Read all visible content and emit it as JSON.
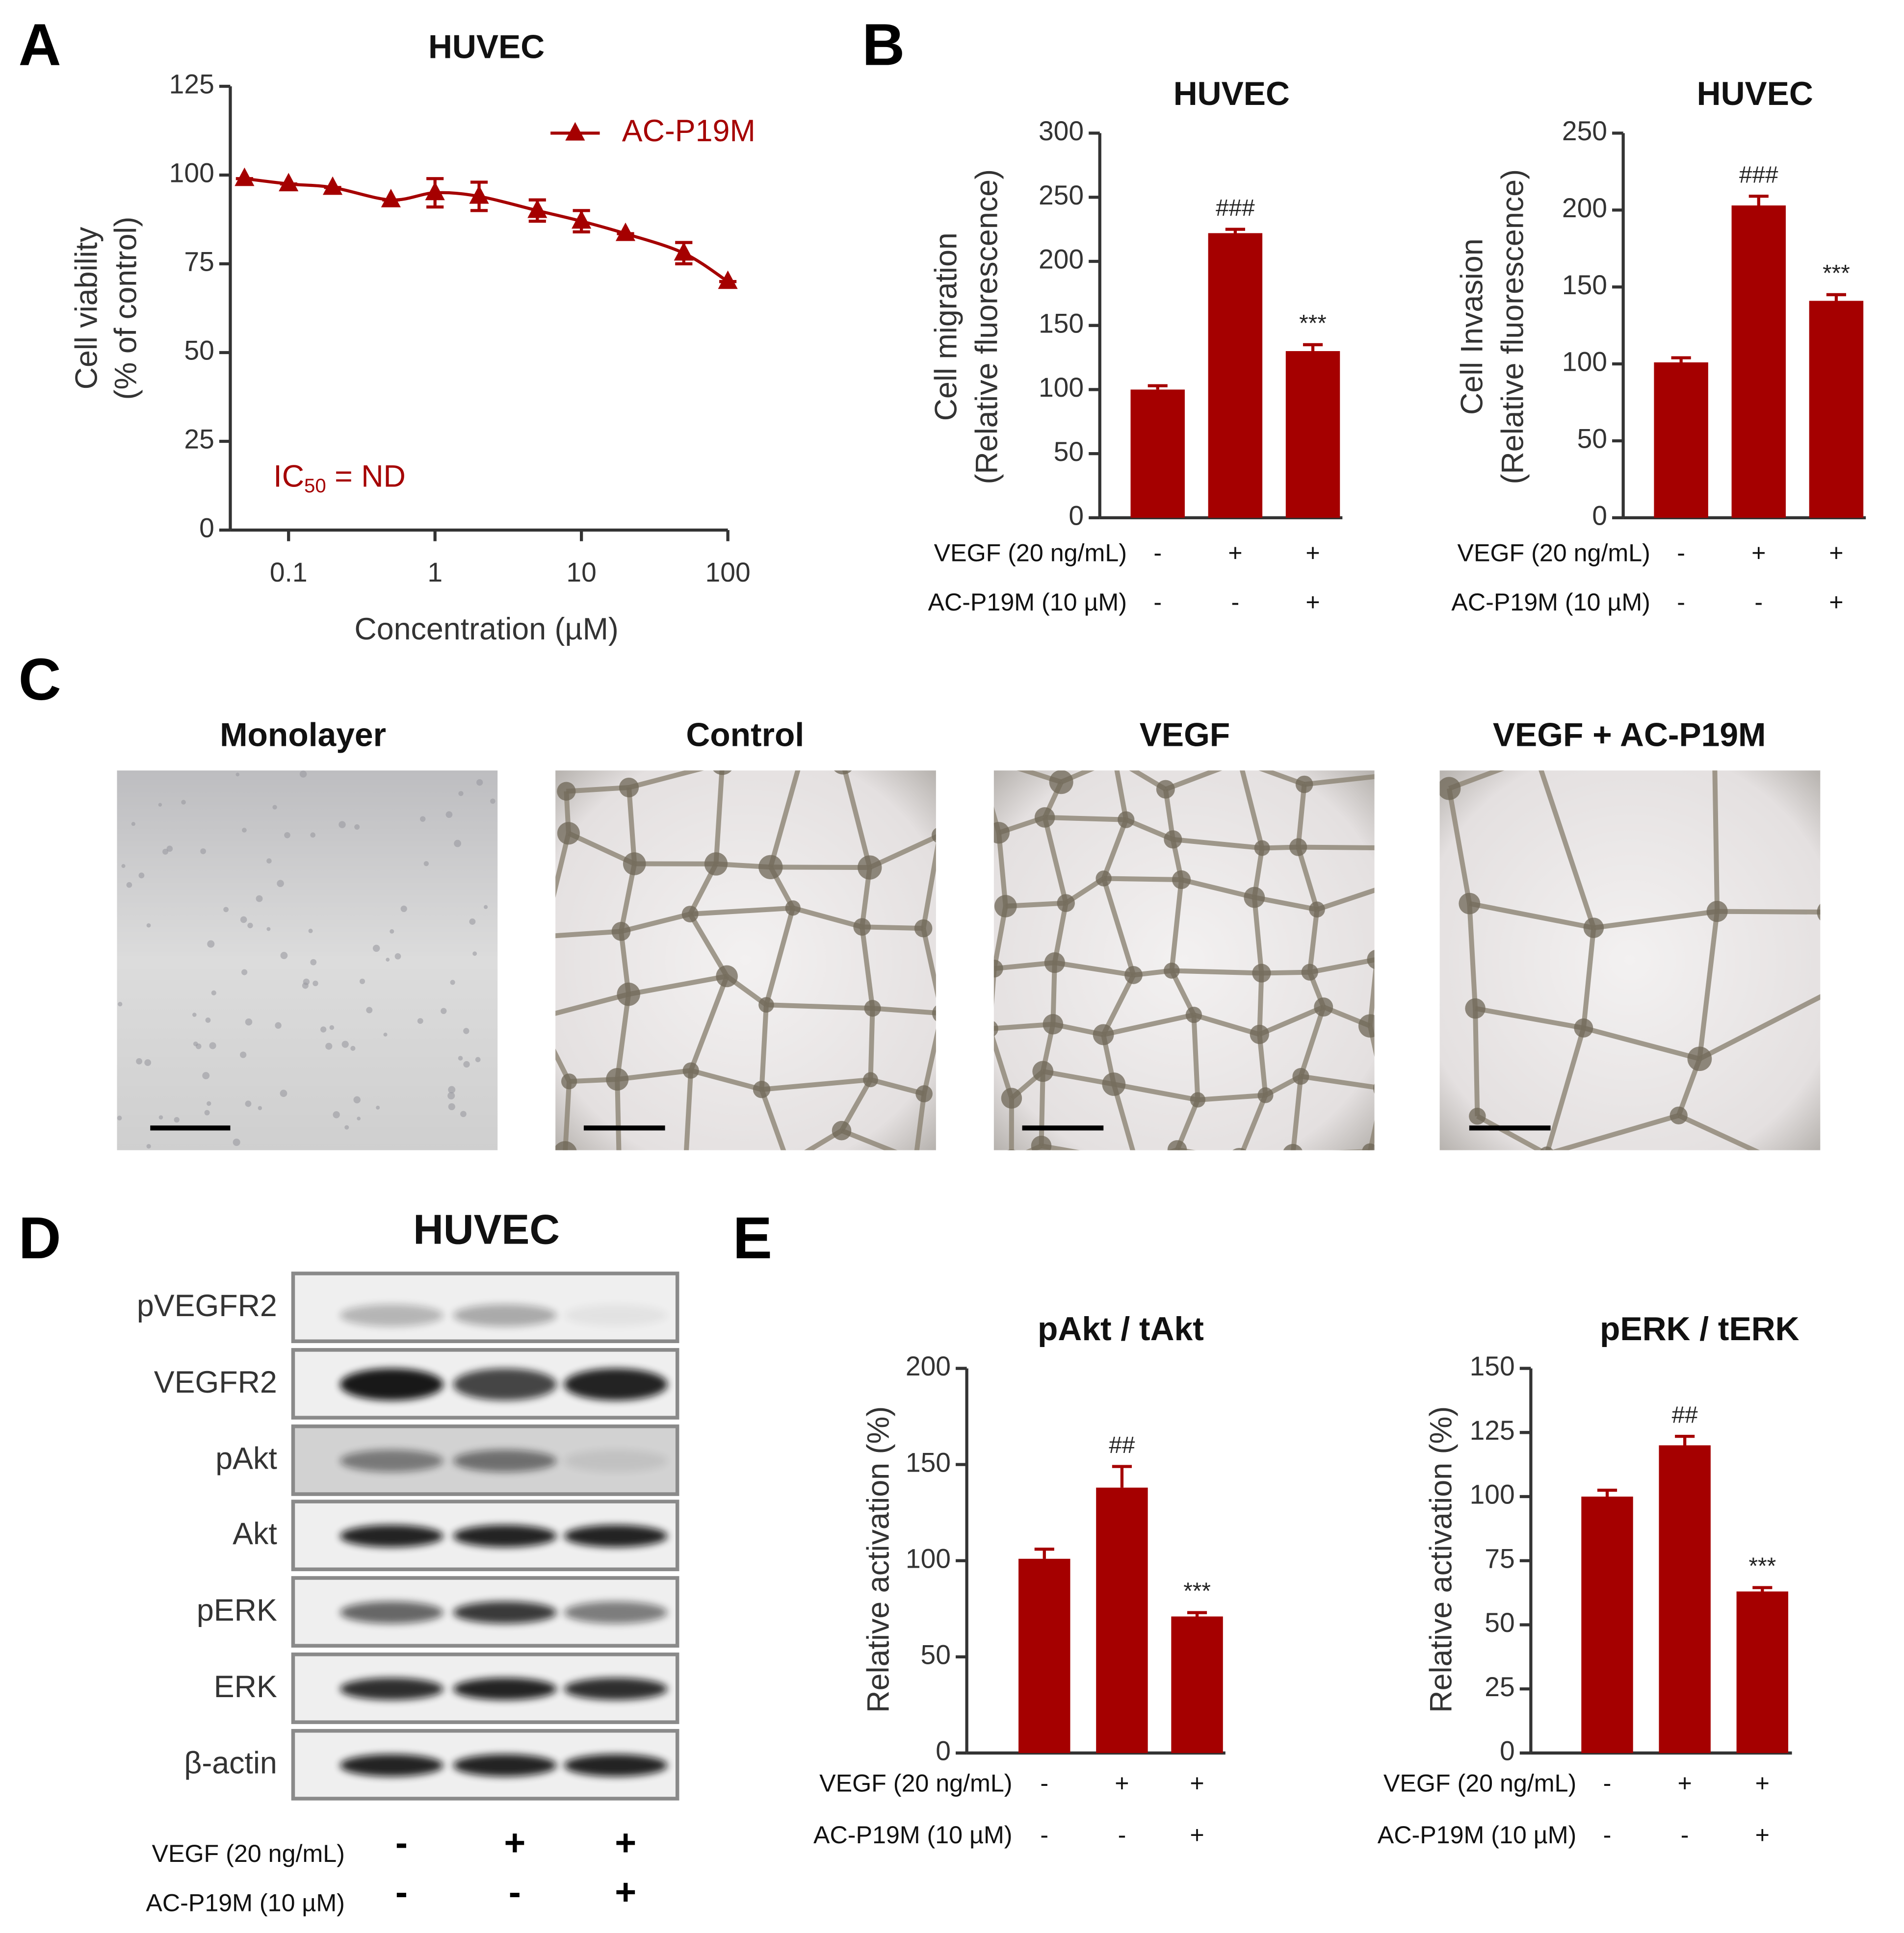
{
  "panel_letters": [
    "A",
    "B",
    "C",
    "D",
    "E"
  ],
  "chart_data": [
    {
      "type": "line",
      "title": "HUVEC",
      "x_label": "Concentration (µM)",
      "y_label": [
        "Cell viability",
        "(% of control)"
      ],
      "x_log": true,
      "xlim": [
        0.04,
        100
      ],
      "xticks": [
        0.1,
        1,
        10,
        100
      ],
      "ylim": [
        0,
        125
      ],
      "yticks": [
        0,
        25,
        50,
        75,
        100,
        125
      ],
      "x": [
        0.05,
        0.1,
        0.2,
        0.5,
        1,
        2,
        5,
        10,
        20,
        50,
        100
      ],
      "series": [
        {
          "name": "AC-P19M",
          "color": "#a50000",
          "values": [
            99,
            97.5,
            96.5,
            93,
            95,
            94,
            90,
            87,
            83.5,
            78,
            70
          ],
          "errors": [
            0,
            0,
            0,
            0,
            4,
            4,
            3,
            3,
            0,
            3,
            0
          ]
        }
      ],
      "annotation": [
        "IC",
        "50",
        " = ND"
      ]
    },
    {
      "type": "bar",
      "title": "HUVEC",
      "y_label": [
        "Cell migration",
        "(Relative fluorescence)"
      ],
      "color": "#a50000",
      "ylim": [
        0,
        300
      ],
      "yticks": [
        0,
        50,
        100,
        150,
        200,
        250,
        300
      ],
      "values": [
        100,
        222,
        130
      ],
      "errors": [
        3,
        3,
        5
      ],
      "annotations": [
        null,
        "###",
        "***"
      ],
      "treatments": [
        {
          "label": "VEGF (20 ng/mL)",
          "signs": [
            "-",
            "+",
            "+"
          ]
        },
        {
          "label": "AC-P19M (10 µM)",
          "signs": [
            "-",
            "-",
            "+"
          ]
        }
      ]
    },
    {
      "type": "bar",
      "title": "HUVEC",
      "y_label": [
        "Cell Invasion",
        "(Relative fluorescence)"
      ],
      "color": "#a50000",
      "ylim": [
        0,
        250
      ],
      "yticks": [
        0,
        50,
        100,
        150,
        200,
        250
      ],
      "values": [
        101,
        203,
        141
      ],
      "errors": [
        3,
        6,
        4
      ],
      "annotations": [
        null,
        "###",
        "***"
      ],
      "treatments": [
        {
          "label": "VEGF (20 ng/mL)",
          "signs": [
            "-",
            "+",
            "+"
          ]
        },
        {
          "label": "AC-P19M (10 µM)",
          "signs": [
            "-",
            "-",
            "+"
          ]
        }
      ]
    },
    {
      "type": "bar",
      "title": "pAkt / tAkt",
      "y_label": "Relative activation (%)",
      "color": "#a50000",
      "ylim": [
        0,
        200
      ],
      "yticks": [
        0,
        50,
        100,
        150,
        200
      ],
      "values": [
        101,
        138,
        71
      ],
      "errors": [
        5,
        11,
        2
      ],
      "annotations": [
        null,
        "##",
        "***"
      ],
      "treatments": [
        {
          "label": "VEGF (20 ng/mL)",
          "signs": [
            "-",
            "+",
            "+"
          ]
        },
        {
          "label": "AC-P19M (10 µM)",
          "signs": [
            "-",
            "-",
            "+"
          ]
        }
      ]
    },
    {
      "type": "bar",
      "title": "pERK / tERK",
      "y_label": "Relative activation (%)",
      "color": "#a50000",
      "ylim": [
        0,
        150
      ],
      "yticks": [
        0,
        25,
        50,
        75,
        100,
        125,
        150
      ],
      "values": [
        100,
        120,
        63
      ],
      "errors": [
        2.5,
        3.5,
        1.5
      ],
      "annotations": [
        null,
        "##",
        "***"
      ],
      "treatments": [
        {
          "label": "VEGF (20 ng/mL)",
          "signs": [
            "-",
            "+",
            "+"
          ]
        },
        {
          "label": "AC-P19M (10 µM)",
          "signs": [
            "-",
            "-",
            "+"
          ]
        }
      ]
    }
  ],
  "micrographs": {
    "titles": [
      "Monolayer",
      "Control",
      "VEGF",
      "VEGF + AC-P19M"
    ]
  },
  "western_blot": {
    "title": "HUVEC",
    "rows": [
      "pVEGFR2",
      "VEGFR2",
      "pAkt",
      "Akt",
      "pERK",
      "ERK",
      "β-actin"
    ],
    "treatments": [
      {
        "label": "VEGF (20 ng/mL)",
        "signs": [
          "-",
          "+",
          "+"
        ]
      },
      {
        "label": "AC-P19M (10 µM)",
        "signs": [
          "-",
          "-",
          "+"
        ]
      }
    ]
  }
}
